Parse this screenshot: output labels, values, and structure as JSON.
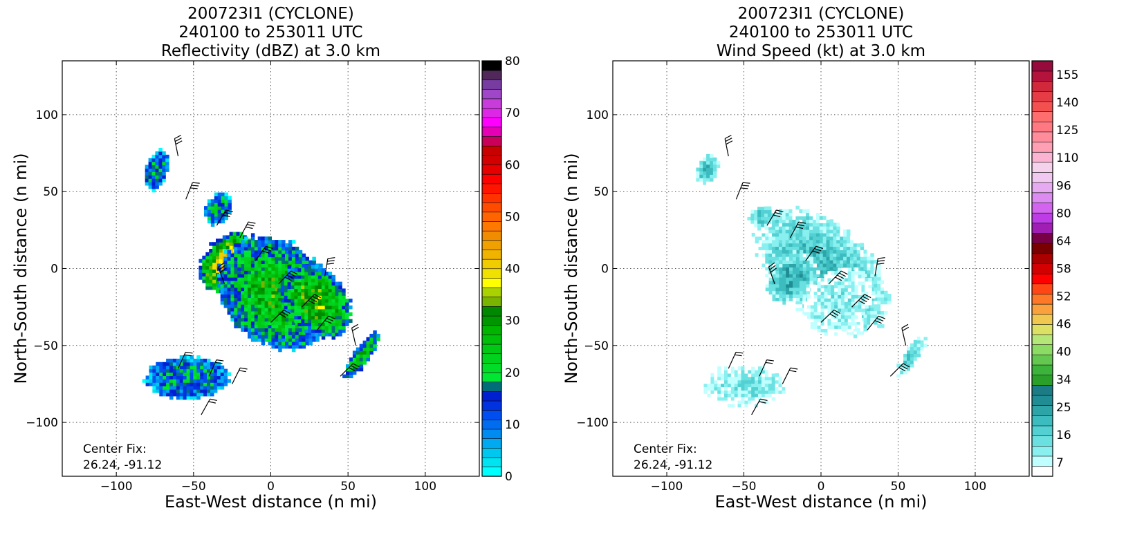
{
  "chart_data": [
    {
      "type": "heatmap",
      "title_lines": [
        "200723I1 (CYCLONE)",
        "240100 to 253011 UTC",
        "Reflectivity (dBZ) at 3.0 km"
      ],
      "xlabel": "East-West distance (n mi)",
      "ylabel": "North-South distance (n mi)",
      "xlim": [
        -135,
        135
      ],
      "ylim": [
        -135,
        135
      ],
      "x_ticks": [
        -100,
        -50,
        0,
        50,
        100
      ],
      "y_ticks": [
        -100,
        -50,
        0,
        50,
        100
      ],
      "grid": true,
      "annotation_lines": [
        "Center Fix:",
        "26.24, -91.12"
      ],
      "colorbar": {
        "vmin": 0,
        "vmax": 80,
        "tick_labels": [
          "0",
          "10",
          "20",
          "30",
          "40",
          "50",
          "60",
          "70",
          "80"
        ],
        "colors": [
          "#00ffff",
          "#00e3f0",
          "#00c7f0",
          "#00a9f0",
          "#008bf0",
          "#006cf0",
          "#004ef0",
          "#0032e0",
          "#0020d0",
          "#006e78",
          "#00e632",
          "#00dc28",
          "#00d21e",
          "#00c814",
          "#00be0a",
          "#00b400",
          "#009600",
          "#008800",
          "#78b400",
          "#aad200",
          "#ffff00",
          "#f0e100",
          "#f0cd00",
          "#f0b400",
          "#f0a000",
          "#f08c00",
          "#ff7800",
          "#ff6400",
          "#ff4b00",
          "#ff3200",
          "#ff1400",
          "#ff0000",
          "#e60000",
          "#d20000",
          "#c80000",
          "#c8005a",
          "#e600b4",
          "#ff00ff",
          "#dc28e6",
          "#c83cdc",
          "#a046c8",
          "#783ca0",
          "#50285a",
          "#000000"
        ]
      },
      "fields": [
        {
          "x": -28,
          "y": 5,
          "sx": 12,
          "sy": 16,
          "rot": -45,
          "v": 42
        },
        {
          "x": -15,
          "y": 0,
          "sx": 7,
          "sy": 7,
          "rot": -45,
          "v": 44
        },
        {
          "x": 2,
          "y": -15,
          "sx": 30,
          "sy": 24,
          "rot": -42,
          "v": 28
        },
        {
          "x": 28,
          "y": -20,
          "sx": 20,
          "sy": 14,
          "rot": -45,
          "v": 32
        },
        {
          "x": -55,
          "y": -70,
          "sx": 20,
          "sy": 10,
          "rot": 0,
          "v": 18
        },
        {
          "x": -35,
          "y": 40,
          "sx": 6,
          "sy": 8,
          "rot": -30,
          "v": 20
        },
        {
          "x": -75,
          "y": 65,
          "sx": 5,
          "sy": 10,
          "rot": -20,
          "v": 18
        },
        {
          "x": 58,
          "y": -55,
          "sx": 4,
          "sy": 14,
          "rot": -35,
          "v": 24
        }
      ],
      "barbs": [
        {
          "x": -60,
          "y": 73,
          "u": -5,
          "v": 25
        },
        {
          "x": -55,
          "y": 45,
          "u": 10,
          "v": 25
        },
        {
          "x": -35,
          "y": 28,
          "u": 15,
          "v": 25
        },
        {
          "x": -20,
          "y": 20,
          "u": 15,
          "v": 28
        },
        {
          "x": -10,
          "y": 5,
          "u": 20,
          "v": 28
        },
        {
          "x": 5,
          "y": -10,
          "u": 25,
          "v": 26
        },
        {
          "x": 20,
          "y": -25,
          "u": 25,
          "v": 25
        },
        {
          "x": 35,
          "y": -5,
          "u": 5,
          "v": 30
        },
        {
          "x": -30,
          "y": -10,
          "u": -10,
          "v": 28
        },
        {
          "x": 0,
          "y": -35,
          "u": 25,
          "v": 24
        },
        {
          "x": 30,
          "y": -40,
          "u": 20,
          "v": 25
        },
        {
          "x": -60,
          "y": -65,
          "u": 10,
          "v": 22
        },
        {
          "x": -40,
          "y": -70,
          "u": 10,
          "v": 22
        },
        {
          "x": -25,
          "y": -75,
          "u": 10,
          "v": 20
        },
        {
          "x": -45,
          "y": -95,
          "u": 10,
          "v": 18
        },
        {
          "x": 45,
          "y": -70,
          "u": 20,
          "v": 20
        },
        {
          "x": 55,
          "y": -50,
          "u": -5,
          "v": 22
        }
      ]
    },
    {
      "type": "heatmap",
      "title_lines": [
        "200723I1 (CYCLONE)",
        "240100 to 253011 UTC",
        "Wind Speed (kt) at 3.0 km"
      ],
      "xlabel": "East-West distance (n mi)",
      "ylabel": "North-South distance (n mi)",
      "xlim": [
        -135,
        135
      ],
      "ylim": [
        -135,
        135
      ],
      "x_ticks": [
        -100,
        -50,
        0,
        50,
        100
      ],
      "y_ticks": [
        -100,
        -50,
        0,
        50,
        100
      ],
      "grid": true,
      "annotation_lines": [
        "Center Fix:",
        "26.24, -91.12"
      ],
      "colorbar": {
        "vmin": 4,
        "vmax": 160,
        "tick_labels": [
          "7",
          "16",
          "25",
          "34",
          "40",
          "46",
          "52",
          "58",
          "64",
          "80",
          "96",
          "110",
          "125",
          "140",
          "155"
        ],
        "colors": [
          "#ffffff",
          "#c0ffff",
          "#8aefef",
          "#6ae0e0",
          "#52d0d2",
          "#3cbcbe",
          "#2ca4a8",
          "#208c94",
          "#1c7c86",
          "#2aa02a",
          "#3cb43c",
          "#64c850",
          "#8cdc64",
          "#b4e678",
          "#dce164",
          "#f0c850",
          "#faa03c",
          "#ff7828",
          "#ff4614",
          "#ff0000",
          "#d20000",
          "#aa0000",
          "#780000",
          "#780046",
          "#a01eb4",
          "#be3ce6",
          "#d264f0",
          "#dc8cf0",
          "#e6aaf0",
          "#f0c8f0",
          "#f5d2eb",
          "#fab4d2",
          "#ff9fb4",
          "#ff8c9a",
          "#ff7882",
          "#ff6e6e",
          "#f55050",
          "#e63c46",
          "#d2283c",
          "#b4143c",
          "#960a3c"
        ]
      },
      "fields": [
        {
          "x": 0,
          "y": 0,
          "sx": 38,
          "sy": 22,
          "rot": -42,
          "v": 24
        },
        {
          "x": 10,
          "y": -20,
          "sx": 14,
          "sy": 18,
          "rot": -45,
          "v": 14
        },
        {
          "x": -20,
          "y": -5,
          "sx": 10,
          "sy": 14,
          "rot": -45,
          "v": 28
        },
        {
          "x": -50,
          "y": -75,
          "sx": 20,
          "sy": 10,
          "rot": 0,
          "v": 16
        },
        {
          "x": -40,
          "y": 35,
          "sx": 6,
          "sy": 6,
          "rot": 0,
          "v": 22
        },
        {
          "x": -75,
          "y": 65,
          "sx": 5,
          "sy": 8,
          "rot": -20,
          "v": 24
        },
        {
          "x": 58,
          "y": -55,
          "sx": 4,
          "sy": 12,
          "rot": -35,
          "v": 20
        }
      ],
      "barbs": [
        {
          "x": -60,
          "y": 73,
          "u": -5,
          "v": 25
        },
        {
          "x": -55,
          "y": 45,
          "u": 10,
          "v": 25
        },
        {
          "x": -35,
          "y": 28,
          "u": 15,
          "v": 25
        },
        {
          "x": -20,
          "y": 20,
          "u": 15,
          "v": 28
        },
        {
          "x": -10,
          "y": 5,
          "u": 20,
          "v": 28
        },
        {
          "x": 5,
          "y": -10,
          "u": 25,
          "v": 26
        },
        {
          "x": 20,
          "y": -25,
          "u": 25,
          "v": 25
        },
        {
          "x": 35,
          "y": -5,
          "u": 5,
          "v": 30
        },
        {
          "x": -30,
          "y": -10,
          "u": -10,
          "v": 28
        },
        {
          "x": 0,
          "y": -35,
          "u": 25,
          "v": 24
        },
        {
          "x": 30,
          "y": -40,
          "u": 20,
          "v": 25
        },
        {
          "x": -60,
          "y": -65,
          "u": 10,
          "v": 22
        },
        {
          "x": -40,
          "y": -70,
          "u": 10,
          "v": 22
        },
        {
          "x": -25,
          "y": -75,
          "u": 10,
          "v": 20
        },
        {
          "x": -45,
          "y": -95,
          "u": 10,
          "v": 18
        },
        {
          "x": 45,
          "y": -70,
          "u": 20,
          "v": 20
        },
        {
          "x": 55,
          "y": -50,
          "u": -5,
          "v": 22
        }
      ]
    }
  ]
}
